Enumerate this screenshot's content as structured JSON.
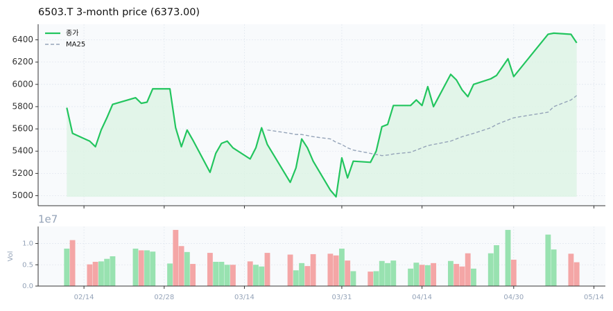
{
  "chart_data": [
    {
      "type": "line",
      "title": "6503.T  3-month price (6373.00)",
      "x": [
        "02/11",
        "02/12",
        "02/15",
        "02/16",
        "02/17",
        "02/18",
        "02/19",
        "02/23",
        "02/24",
        "02/25",
        "02/26",
        "03/01",
        "03/02",
        "03/03",
        "03/04",
        "03/05",
        "03/08",
        "03/09",
        "03/10",
        "03/11",
        "03/12",
        "03/15",
        "03/16",
        "03/17",
        "03/18",
        "03/22",
        "03/23",
        "03/24",
        "03/25",
        "03/26",
        "03/29",
        "03/30",
        "03/31",
        "04/01",
        "04/02",
        "04/05",
        "04/06",
        "04/07",
        "04/08",
        "04/09",
        "04/12",
        "04/13",
        "04/14",
        "04/15",
        "04/16",
        "04/19",
        "04/20",
        "04/21",
        "04/22",
        "04/23",
        "04/26",
        "04/27",
        "04/29",
        "04/30",
        "05/06",
        "05/07",
        "05/10",
        "05/11"
      ],
      "xlim": [
        "02/06",
        "05/16"
      ],
      "xticks": [
        "02/14",
        "02/28",
        "03/14",
        "03/31",
        "04/14",
        "04/30",
        "05/14"
      ],
      "ylim": [
        4910,
        6540
      ],
      "yticks": [
        5000,
        5200,
        5400,
        5600,
        5800,
        6000,
        6200,
        6400
      ],
      "grid": true,
      "legend": "upper left",
      "series": [
        {
          "name": "종가",
          "color": "#22c55e",
          "fill": "#dcf4e4",
          "values": [
            5790,
            5560,
            5490,
            5440,
            5590,
            5700,
            5820,
            5880,
            5830,
            5840,
            5960,
            5960,
            5610,
            5440,
            5590,
            5500,
            5210,
            5380,
            5470,
            5490,
            5430,
            5330,
            5430,
            5610,
            5460,
            5120,
            5250,
            5510,
            5430,
            5310,
            5050,
            4990,
            5340,
            5160,
            5310,
            5300,
            5400,
            5620,
            5640,
            5810,
            5810,
            5860,
            5810,
            5980,
            5800,
            6090,
            6040,
            5950,
            5890,
            6000,
            6050,
            6080,
            6230,
            6070,
            6450,
            6460,
            6450,
            6373
          ]
        },
        {
          "name": "MA25",
          "color": "#94a3b8",
          "dash": true,
          "values": [
            null,
            null,
            null,
            null,
            null,
            null,
            null,
            null,
            null,
            null,
            null,
            null,
            null,
            null,
            null,
            null,
            null,
            null,
            null,
            null,
            null,
            null,
            null,
            null,
            5590,
            5560,
            5550,
            5550,
            5540,
            5530,
            5510,
            5480,
            5460,
            5430,
            5410,
            5380,
            5370,
            5360,
            5365,
            5375,
            5390,
            5410,
            5430,
            5450,
            5460,
            5490,
            5510,
            5530,
            5545,
            5560,
            5610,
            5640,
            5680,
            5700,
            5750,
            5800,
            5860,
            5900
          ]
        }
      ]
    },
    {
      "type": "bar",
      "ylabel": "Vol",
      "offset_label": "1e7",
      "x": [
        "02/11",
        "02/12",
        "02/15",
        "02/16",
        "02/17",
        "02/18",
        "02/19",
        "02/23",
        "02/24",
        "02/25",
        "02/26",
        "03/01",
        "03/02",
        "03/03",
        "03/04",
        "03/05",
        "03/08",
        "03/09",
        "03/10",
        "03/11",
        "03/12",
        "03/15",
        "03/16",
        "03/17",
        "03/18",
        "03/22",
        "03/23",
        "03/24",
        "03/25",
        "03/26",
        "03/29",
        "03/30",
        "03/31",
        "04/01",
        "04/02",
        "04/05",
        "04/06",
        "04/07",
        "04/08",
        "04/09",
        "04/12",
        "04/13",
        "04/14",
        "04/15",
        "04/16",
        "04/19",
        "04/20",
        "04/21",
        "04/22",
        "04/23",
        "04/26",
        "04/27",
        "04/29",
        "04/30",
        "05/06",
        "05/07",
        "05/10",
        "05/11"
      ],
      "values": [
        0.88,
        1.08,
        0.51,
        0.57,
        0.58,
        0.64,
        0.7,
        0.88,
        0.84,
        0.84,
        0.81,
        0.53,
        1.32,
        0.94,
        0.8,
        0.52,
        0.78,
        0.57,
        0.57,
        0.5,
        0.5,
        0.58,
        0.5,
        0.46,
        0.78,
        0.74,
        0.37,
        0.54,
        0.47,
        0.75,
        0.76,
        0.72,
        0.88,
        0.6,
        0.35,
        0.34,
        0.35,
        0.59,
        0.54,
        0.6,
        0.41,
        0.55,
        0.5,
        0.49,
        0.54,
        0.59,
        0.52,
        0.46,
        0.77,
        0.41,
        0.77,
        0.96,
        1.32,
        0.62,
        1.21,
        0.86,
        0.76,
        0.56
      ],
      "up_color": "#98e2b0",
      "down_color": "#f4a6a6",
      "xlim": [
        "02/06",
        "05/16"
      ],
      "xticks": [
        "02/14",
        "02/28",
        "03/14",
        "03/31",
        "04/14",
        "04/30",
        "05/14"
      ],
      "ylim": [
        0,
        1.4
      ],
      "yticks": [
        {
          "value": 0,
          "label": "0.0"
        },
        {
          "value": 0.5,
          "label": "0.5"
        },
        {
          "value": 1.0,
          "label": "1.0"
        }
      ],
      "grid": true
    }
  ]
}
